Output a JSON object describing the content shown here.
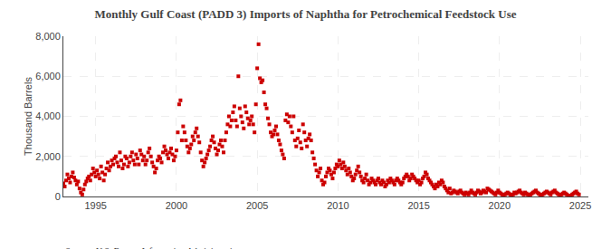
{
  "chart_data": {
    "type": "scatter",
    "title": "Monthly Gulf Coast (PADD 3) Imports of Naphtha for Petrochemical Feedstock Use",
    "ylabel": "Thousand Barrels",
    "annotation": "Source: U.S. Energy Information Administration",
    "color": "#cc0000",
    "marker": "square",
    "grid": true,
    "xlim": [
      1993.0,
      2025.5
    ],
    "xticks": [
      1995,
      2000,
      2005,
      2010,
      2015,
      2020,
      2025
    ],
    "ylim": [
      0,
      8000
    ],
    "yticks": [
      0,
      {
        "value": 2000,
        "label": "2,000"
      },
      {
        "value": 4000,
        "label": "4,000"
      },
      {
        "value": 6000,
        "label": "6,000"
      },
      {
        "value": 8000,
        "label": "8,000"
      }
    ],
    "x": [
      1993.0,
      1993.083,
      1993.167,
      1993.25,
      1993.333,
      1993.417,
      1993.5,
      1993.583,
      1993.667,
      1993.75,
      1993.833,
      1993.917,
      1994.0,
      1994.083,
      1994.167,
      1994.25,
      1994.333,
      1994.417,
      1994.5,
      1994.583,
      1994.667,
      1994.75,
      1994.833,
      1994.917,
      1995.0,
      1995.083,
      1995.167,
      1995.25,
      1995.333,
      1995.417,
      1995.5,
      1995.583,
      1995.667,
      1995.75,
      1995.833,
      1995.917,
      1996.0,
      1996.083,
      1996.167,
      1996.25,
      1996.333,
      1996.417,
      1996.5,
      1996.583,
      1996.667,
      1996.75,
      1996.833,
      1996.917,
      1997.0,
      1997.083,
      1997.167,
      1997.25,
      1997.333,
      1997.417,
      1997.5,
      1997.583,
      1997.667,
      1997.75,
      1997.833,
      1997.917,
      1998.0,
      1998.083,
      1998.167,
      1998.25,
      1998.333,
      1998.417,
      1998.5,
      1998.583,
      1998.667,
      1998.75,
      1998.833,
      1998.917,
      1999.0,
      1999.083,
      1999.167,
      1999.25,
      1999.333,
      1999.417,
      1999.5,
      1999.583,
      1999.667,
      1999.75,
      1999.833,
      1999.917,
      2000.0,
      2000.083,
      2000.167,
      2000.25,
      2000.333,
      2000.417,
      2000.5,
      2000.583,
      2000.667,
      2000.75,
      2000.833,
      2000.917,
      2001.0,
      2001.083,
      2001.167,
      2001.25,
      2001.333,
      2001.417,
      2001.5,
      2001.583,
      2001.667,
      2001.75,
      2001.833,
      2001.917,
      2002.0,
      2002.083,
      2002.167,
      2002.25,
      2002.333,
      2002.417,
      2002.5,
      2002.583,
      2002.667,
      2002.75,
      2002.833,
      2002.917,
      2003.0,
      2003.083,
      2003.167,
      2003.25,
      2003.333,
      2003.417,
      2003.5,
      2003.583,
      2003.667,
      2003.75,
      2003.833,
      2003.917,
      2004.0,
      2004.083,
      2004.167,
      2004.25,
      2004.333,
      2004.417,
      2004.5,
      2004.583,
      2004.667,
      2004.75,
      2004.833,
      2004.917,
      2005.0,
      2005.083,
      2005.167,
      2005.25,
      2005.333,
      2005.417,
      2005.5,
      2005.583,
      2005.667,
      2005.75,
      2005.833,
      2005.917,
      2006.0,
      2006.083,
      2006.167,
      2006.25,
      2006.333,
      2006.417,
      2006.5,
      2006.583,
      2006.667,
      2006.75,
      2006.833,
      2006.917,
      2007.0,
      2007.083,
      2007.167,
      2007.25,
      2007.333,
      2007.417,
      2007.5,
      2007.583,
      2007.667,
      2007.75,
      2007.833,
      2007.917,
      2008.0,
      2008.083,
      2008.167,
      2008.25,
      2008.333,
      2008.417,
      2008.5,
      2008.583,
      2008.667,
      2008.75,
      2008.833,
      2008.917,
      2009.0,
      2009.083,
      2009.167,
      2009.25,
      2009.333,
      2009.417,
      2009.5,
      2009.583,
      2009.667,
      2009.75,
      2009.833,
      2009.917,
      2010.0,
      2010.083,
      2010.167,
      2010.25,
      2010.333,
      2010.417,
      2010.5,
      2010.583,
      2010.667,
      2010.75,
      2010.833,
      2010.917,
      2011.0,
      2011.083,
      2011.167,
      2011.25,
      2011.333,
      2011.417,
      2011.5,
      2011.583,
      2011.667,
      2011.75,
      2011.833,
      2011.917,
      2012.0,
      2012.083,
      2012.167,
      2012.25,
      2012.333,
      2012.417,
      2012.5,
      2012.583,
      2012.667,
      2012.75,
      2012.833,
      2012.917,
      2013.0,
      2013.083,
      2013.167,
      2013.25,
      2013.333,
      2013.417,
      2013.5,
      2013.583,
      2013.667,
      2013.75,
      2013.833,
      2013.917,
      2014.0,
      2014.083,
      2014.167,
      2014.25,
      2014.333,
      2014.417,
      2014.5,
      2014.583,
      2014.667,
      2014.75,
      2014.833,
      2014.917,
      2015.0,
      2015.083,
      2015.167,
      2015.25,
      2015.333,
      2015.417,
      2015.5,
      2015.583,
      2015.667,
      2015.75,
      2015.833,
      2015.917,
      2016.0,
      2016.083,
      2016.167,
      2016.25,
      2016.333,
      2016.417,
      2016.5,
      2016.583,
      2016.667,
      2016.75,
      2016.833,
      2016.917,
      2017.0,
      2017.083,
      2017.167,
      2017.25,
      2017.333,
      2017.417,
      2017.5,
      2017.583,
      2017.667,
      2017.75,
      2017.833,
      2017.917,
      2018.0,
      2018.083,
      2018.167,
      2018.25,
      2018.333,
      2018.417,
      2018.5,
      2018.583,
      2018.667,
      2018.75,
      2018.833,
      2018.917,
      2019.0,
      2019.083,
      2019.167,
      2019.25,
      2019.333,
      2019.417,
      2019.5,
      2019.583,
      2019.667,
      2019.75,
      2019.833,
      2019.917,
      2020.0,
      2020.083,
      2020.167,
      2020.25,
      2020.333,
      2020.417,
      2020.5,
      2020.583,
      2020.667,
      2020.75,
      2020.833,
      2020.917,
      2021.0,
      2021.083,
      2021.167,
      2021.25,
      2021.333,
      2021.417,
      2021.5,
      2021.583,
      2021.667,
      2021.75,
      2021.833,
      2021.917,
      2022.0,
      2022.083,
      2022.167,
      2022.25,
      2022.333,
      2022.417,
      2022.5,
      2022.583,
      2022.667,
      2022.75,
      2022.833,
      2022.917,
      2023.0,
      2023.083,
      2023.167,
      2023.25,
      2023.333,
      2023.417,
      2023.5,
      2023.583,
      2023.667,
      2023.75,
      2023.833,
      2023.917,
      2024.0,
      2024.083,
      2024.167,
      2024.25,
      2024.333,
      2024.417,
      2024.5,
      2024.583,
      2024.667,
      2024.75,
      2024.833,
      2024.917
    ],
    "values": [
      650,
      500,
      800,
      1100,
      900,
      700,
      1000,
      1200,
      950,
      800,
      600,
      750,
      400,
      200,
      100,
      350,
      600,
      750,
      900,
      1000,
      800,
      1100,
      1400,
      1200,
      1000,
      1300,
      1100,
      900,
      1500,
      1200,
      800,
      1100,
      1400,
      1700,
      1300,
      1500,
      1800,
      1600,
      1900,
      2000,
      1700,
      1500,
      2200,
      1800,
      1400,
      1600,
      2000,
      1900,
      1500,
      1700,
      2000,
      2200,
      1800,
      1600,
      2100,
      1900,
      1600,
      2300,
      2100,
      1800,
      2000,
      1600,
      1800,
      2200,
      2400,
      2000,
      1700,
      1500,
      1200,
      1400,
      1800,
      2000,
      1900,
      1700,
      2200,
      2500,
      2300,
      2100,
      1900,
      2200,
      2400,
      2100,
      1800,
      2000,
      2300,
      3200,
      4600,
      4800,
      2800,
      3500,
      3200,
      2800,
      2500,
      2200,
      2400,
      2600,
      3000,
      2800,
      3200,
      3400,
      3000,
      2700,
      2200,
      1800,
      1500,
      1700,
      1900,
      2100,
      2300,
      2500,
      2800,
      3000,
      2700,
      2400,
      2100,
      2300,
      2600,
      2800,
      2500,
      2200,
      2800,
      3200,
      3600,
      4000,
      3500,
      3800,
      4200,
      4500,
      3800,
      3500,
      6000,
      4400,
      4000,
      3700,
      3400,
      4500,
      4200,
      3900,
      3600,
      3800,
      4000,
      3600,
      3200,
      4600,
      6400,
      7600,
      5900,
      5700,
      5800,
      5200,
      4600,
      4400,
      3900,
      3600,
      3200,
      3000,
      3100,
      3300,
      3500,
      3100,
      2800,
      2600,
      2300,
      2100,
      1900,
      3800,
      4100,
      3700,
      4000,
      3500,
      3200,
      4000,
      2800,
      2500,
      2900,
      3300,
      2700,
      2400,
      3600,
      3200,
      2800,
      2500,
      2900,
      3100,
      2800,
      2200,
      1900,
      1600,
      1300,
      1000,
      1200,
      1400,
      800,
      600,
      700,
      1000,
      1200,
      1400,
      1300,
      1100,
      900,
      1200,
      1400,
      1600,
      1500,
      1800,
      1600,
      1400,
      1700,
      1500,
      1300,
      1100,
      1400,
      1200,
      1000,
      800,
      900,
      1100,
      1300,
      1500,
      1200,
      1000,
      800,
      700,
      900,
      1100,
      800,
      600,
      700,
      900,
      800,
      700,
      600,
      800,
      900,
      700,
      600,
      800,
      700,
      500,
      600,
      800,
      700,
      900,
      800,
      700,
      600,
      800,
      900,
      800,
      700,
      600,
      700,
      900,
      1000,
      1100,
      1000,
      800,
      900,
      1100,
      1000,
      900,
      800,
      700,
      800,
      600,
      700,
      900,
      1000,
      1200,
      1100,
      900,
      800,
      700,
      600,
      500,
      400,
      600,
      500,
      700,
      600,
      800,
      700,
      500,
      400,
      300,
      200,
      400,
      150,
      200,
      300,
      250,
      200,
      150,
      250,
      300,
      200,
      150,
      100,
      200,
      150,
      100,
      200,
      300,
      200,
      150,
      100,
      200,
      300,
      250,
      150,
      200,
      300,
      250,
      200,
      400,
      350,
      300,
      250,
      200,
      150,
      100,
      200,
      300,
      200,
      150,
      100,
      50,
      100,
      150,
      200,
      150,
      100,
      50,
      100,
      200,
      150,
      200,
      250,
      300,
      200,
      150,
      100,
      200,
      150,
      100,
      50,
      100,
      150,
      200,
      250,
      300,
      200,
      150,
      100,
      50,
      100,
      150,
      200,
      250,
      200,
      150,
      100,
      200,
      250,
      300,
      200,
      150,
      100,
      50,
      100,
      150,
      200,
      150,
      100,
      50,
      30,
      20,
      100,
      150,
      200,
      250,
      150,
      100
    ]
  }
}
